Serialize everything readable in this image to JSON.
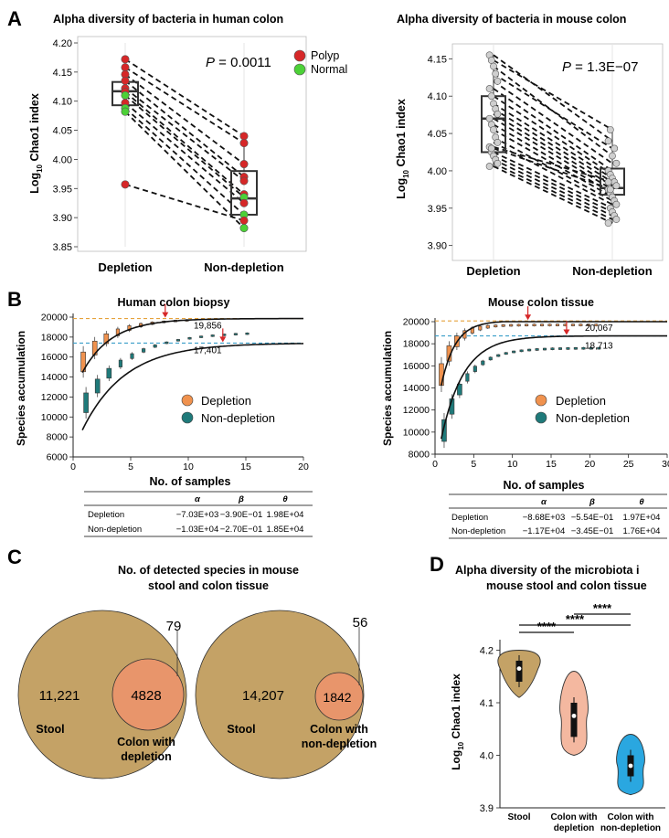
{
  "panels": {
    "A": "A",
    "B": "B",
    "C": "C",
    "D": "D"
  },
  "chart_data": [
    {
      "id": "A_human",
      "type": "scatter",
      "title": "Alpha diversity of bacteria in human colon",
      "ylabel_main": "Log",
      "ylabel_sub": "10",
      "ylabel_rest": " Chao1 index",
      "categories": [
        "Depletion",
        "Non-depletion"
      ],
      "ylim": [
        3.85,
        4.2
      ],
      "yticks": [
        "3.85",
        "3.90",
        "3.95",
        "4.00",
        "4.05",
        "4.10",
        "4.15",
        "4.20"
      ],
      "pvalue_label": "P",
      "pvalue_text": " = 0.0011",
      "legend": [
        {
          "name": "Polyp",
          "color": "#d62728"
        },
        {
          "name": "Normal",
          "color": "#4cd137"
        }
      ],
      "box": {
        "Depletion": {
          "min": 4.085,
          "q1": 4.093,
          "median": 4.117,
          "q3": 4.133,
          "max": 4.16
        },
        "Non-depletion": {
          "min": 3.88,
          "q1": 3.905,
          "median": 3.933,
          "q3": 3.98,
          "max": 4.04
        }
      },
      "pairs": [
        {
          "depletion": 4.172,
          "non_depletion": 4.04,
          "group": "Polyp"
        },
        {
          "depletion": 4.158,
          "non_depletion": 4.028,
          "group": "Polyp"
        },
        {
          "depletion": 4.146,
          "non_depletion": 3.992,
          "group": "Polyp"
        },
        {
          "depletion": 4.135,
          "non_depletion": 3.97,
          "group": "Polyp"
        },
        {
          "depletion": 4.122,
          "non_depletion": 3.963,
          "group": "Polyp"
        },
        {
          "depletion": 4.116,
          "non_depletion": 3.94,
          "group": "Polyp"
        },
        {
          "depletion": 4.11,
          "non_depletion": 3.935,
          "group": "Normal"
        },
        {
          "depletion": 4.097,
          "non_depletion": 3.925,
          "group": "Polyp"
        },
        {
          "depletion": 4.088,
          "non_depletion": 3.905,
          "group": "Normal"
        },
        {
          "depletion": 4.082,
          "non_depletion": 3.882,
          "group": "Normal"
        },
        {
          "depletion": 3.957,
          "non_depletion": 3.895,
          "group": "Polyp"
        }
      ]
    },
    {
      "id": "A_mouse",
      "type": "scatter",
      "title": "Alpha diversity of bacteria in mouse colon",
      "ylabel_main": "Log",
      "ylabel_sub": "10",
      "ylabel_rest": " Chao1 index",
      "categories": [
        "Depletion",
        "Non-depletion"
      ],
      "ylim": [
        3.88,
        4.17
      ],
      "yticks": [
        "3.90",
        "3.95",
        "4.00",
        "4.05",
        "4.10",
        "4.15"
      ],
      "pvalue_label": "P",
      "pvalue_text": " = 1.3E−07",
      "box": {
        "Depletion": {
          "min": 4.005,
          "q1": 4.025,
          "median": 4.07,
          "q3": 4.1,
          "max": 4.155
        },
        "Non-depletion": {
          "min": 3.93,
          "q1": 3.968,
          "median": 3.977,
          "q3": 4.003,
          "max": 4.055
        }
      },
      "pairs": [
        {
          "depletion": 4.155,
          "non_depletion": 4.04
        },
        {
          "depletion": 4.148,
          "non_depletion": 4.055
        },
        {
          "depletion": 4.14,
          "non_depletion": 4.02
        },
        {
          "depletion": 4.13,
          "non_depletion": 4.03
        },
        {
          "depletion": 4.12,
          "non_depletion": 4.01
        },
        {
          "depletion": 4.11,
          "non_depletion": 4.0
        },
        {
          "depletion": 4.1,
          "non_depletion": 3.995
        },
        {
          "depletion": 4.09,
          "non_depletion": 3.99
        },
        {
          "depletion": 4.083,
          "non_depletion": 3.985
        },
        {
          "depletion": 4.076,
          "non_depletion": 3.98
        },
        {
          "depletion": 4.07,
          "non_depletion": 3.975
        },
        {
          "depletion": 4.062,
          "non_depletion": 3.97
        },
        {
          "depletion": 4.055,
          "non_depletion": 3.965
        },
        {
          "depletion": 4.045,
          "non_depletion": 3.96
        },
        {
          "depletion": 4.038,
          "non_depletion": 3.955
        },
        {
          "depletion": 4.032,
          "non_depletion": 3.985
        },
        {
          "depletion": 4.025,
          "non_depletion": 3.95
        },
        {
          "depletion": 4.02,
          "non_depletion": 3.945
        },
        {
          "depletion": 4.015,
          "non_depletion": 3.94
        },
        {
          "depletion": 4.01,
          "non_depletion": 3.935
        },
        {
          "depletion": 4.006,
          "non_depletion": 3.93
        },
        {
          "depletion": 4.03,
          "non_depletion": 3.975
        }
      ]
    },
    {
      "id": "B_human",
      "type": "line",
      "title": "Human colon biopsy",
      "ylabel": "Species accumulation",
      "xlabel": "No. of samples",
      "xlim": [
        0,
        20
      ],
      "ylim": [
        6000,
        20000
      ],
      "xticks": [
        "0",
        "5",
        "10",
        "15",
        "20"
      ],
      "yticks": [
        "6000",
        "8000",
        "10000",
        "12000",
        "14000",
        "16000",
        "18000",
        "20000"
      ],
      "legend": [
        {
          "name": "Depletion",
          "color": "#f0924e"
        },
        {
          "name": "Non-depletion",
          "color": "#1f7a7a"
        }
      ],
      "series": [
        {
          "name": "Depletion",
          "alpha": -7030,
          "beta": -0.39,
          "theta": 19800,
          "x_end": 10,
          "asymptote": 19856,
          "arrow_x": 8
        },
        {
          "name": "Non-depletion",
          "alpha": -10300,
          "beta": -0.27,
          "theta": 18500,
          "x_end": 15,
          "asymptote": 17401,
          "arrow_x": 13
        }
      ],
      "annotations": [
        "19,856",
        "17,401"
      ],
      "params_table": {
        "headers": [
          "",
          "α",
          "β",
          "θ"
        ],
        "rows": [
          [
            "Depletion",
            "−7.03E+03",
            "−3.90E−01",
            "1.98E+04"
          ],
          [
            "Non-depletion",
            "−1.03E+04",
            "−2.70E−01",
            "1.85E+04"
          ]
        ]
      }
    },
    {
      "id": "B_mouse",
      "type": "line",
      "title": "Mouse colon tissue",
      "ylabel": "Species accumulation",
      "xlabel": "No. of samples",
      "xlim": [
        0,
        30
      ],
      "ylim": [
        8000,
        20000
      ],
      "xticks": [
        "0",
        "5",
        "10",
        "15",
        "20",
        "25",
        "30"
      ],
      "yticks": [
        "8000",
        "10000",
        "12000",
        "14000",
        "16000",
        "18000",
        "20000"
      ],
      "legend": [
        {
          "name": "Depletion",
          "color": "#f0924e"
        },
        {
          "name": "Non-depletion",
          "color": "#1f7a7a"
        }
      ],
      "series": [
        {
          "name": "Depletion",
          "alpha": -8680,
          "beta": -0.554,
          "theta": 19700,
          "x_end": 21,
          "asymptote": 20067,
          "arrow_x": 12
        },
        {
          "name": "Non-depletion",
          "alpha": -11700,
          "beta": -0.345,
          "theta": 17600,
          "x_end": 21,
          "asymptote": 18713,
          "arrow_x": 17
        }
      ],
      "annotations": [
        "20,067",
        "18,713"
      ],
      "params_table": {
        "headers": [
          "",
          "α",
          "β",
          "θ"
        ],
        "rows": [
          [
            "Depletion",
            "−8.68E+03",
            "−5.54E−01",
            "1.97E+04"
          ],
          [
            "Non-depletion",
            "−1.17E+04",
            "−3.45E−01",
            "1.76E+04"
          ]
        ]
      }
    },
    {
      "id": "C",
      "type": "venn",
      "title_line1": "No. of detected species in mouse",
      "title_line2": "stool and colon tissue",
      "diagrams": [
        {
          "big_label": "Stool",
          "big_only": "11,221",
          "overlap": "4828",
          "small_only": "79",
          "small_label_1": "Colon with",
          "small_label_2": "depletion"
        },
        {
          "big_label": "Stool",
          "big_only": "14,207",
          "overlap": "1842",
          "small_only": "56",
          "small_label_1": "Colon with",
          "small_label_2": "non-depletion"
        }
      ],
      "colors": {
        "big": "#c4a266",
        "small": "#e8956b"
      }
    },
    {
      "id": "D",
      "type": "violin",
      "title_line1": "Alpha diversity of the microbiota i",
      "title_line2": "mouse stool and colon tissue",
      "ylabel_main": "Log",
      "ylabel_sub": "10",
      "ylabel_rest": " Chao1 index",
      "ylim": [
        3.9,
        4.22
      ],
      "yticks": [
        "3.9",
        "4.0",
        "4.1",
        "4.2"
      ],
      "categories": [
        {
          "line1": "Stool",
          "line2": ""
        },
        {
          "line1": "Colon with",
          "line2": "depletion"
        },
        {
          "line1": "Colon with",
          "line2": "non-depletion"
        }
      ],
      "significance": [
        "****",
        "****",
        "****"
      ],
      "groups": [
        {
          "color": "#c4a266",
          "min": 4.11,
          "max": 4.2,
          "q1": 4.14,
          "median": 4.165,
          "q3": 4.18
        },
        {
          "color": "#f4b8a0",
          "min": 4.0,
          "max": 4.16,
          "q1": 4.035,
          "median": 4.075,
          "q3": 4.1
        },
        {
          "color": "#2aa7e0",
          "min": 3.925,
          "max": 4.04,
          "q1": 3.96,
          "median": 3.98,
          "q3": 4.0
        }
      ]
    }
  ]
}
